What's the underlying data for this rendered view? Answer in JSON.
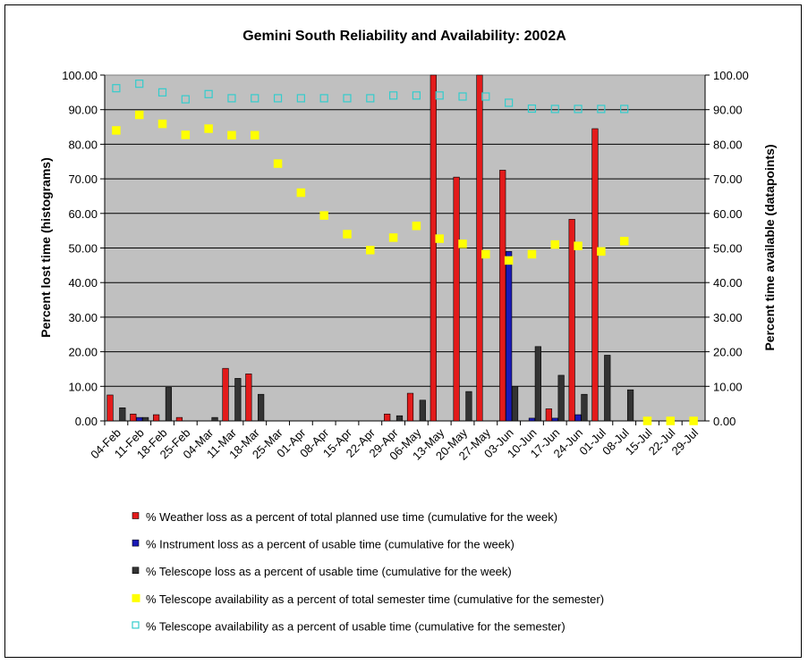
{
  "chart_data": {
    "type": "bar",
    "title": "Gemini South Reliability and Availability: 2002A",
    "ylabel_left": "Percent lost time (histograms)",
    "ylabel_right": "Percent time available (datapoints)",
    "ylim": [
      0,
      100
    ],
    "ytick_labels": [
      "0.00",
      "10.00",
      "20.00",
      "30.00",
      "40.00",
      "50.00",
      "60.00",
      "70.00",
      "80.00",
      "90.00",
      "100.00"
    ],
    "grid": true,
    "plot_background": "#c0c0c0",
    "categories": [
      "04-Feb",
      "11-Feb",
      "18-Feb",
      "25-Feb",
      "04-Mar",
      "11-Mar",
      "18-Mar",
      "25-Mar",
      "01-Apr",
      "08-Apr",
      "15-Apr",
      "22-Apr",
      "29-Apr",
      "06-May",
      "13-May",
      "20-May",
      "27-May",
      "03-Jun",
      "10-Jun",
      "17-Jun",
      "24-Jun",
      "01-Jul",
      "08-Jul",
      "15-Jul",
      "22-Jul",
      "29-Jul"
    ],
    "series": [
      {
        "name": "% Weather loss as a percent of total planned use time (cumulative for the week)",
        "kind": "bar",
        "color": "#e31b1b",
        "values": [
          7.5,
          2.0,
          1.8,
          1.0,
          0,
          15.2,
          13.6,
          0,
          0,
          0,
          0,
          0,
          2.0,
          8.0,
          100,
          70.5,
          100,
          72.5,
          0,
          3.5,
          58.3,
          84.5,
          0,
          0,
          0,
          0
        ]
      },
      {
        "name": "% Instrument loss as a percent of usable time (cumulative for the week)",
        "kind": "bar",
        "color": "#1a1ab8",
        "values": [
          0,
          1.0,
          0,
          0,
          0,
          0,
          0,
          0,
          0,
          0,
          0,
          0,
          0,
          0,
          0,
          0,
          0,
          49.0,
          0.8,
          0.8,
          1.8,
          0,
          0,
          0,
          0,
          0
        ]
      },
      {
        "name": "% Telescope loss as a percent of usable time (cumulative for the week)",
        "kind": "bar",
        "color": "#333333",
        "values": [
          3.8,
          1.0,
          9.7,
          0,
          1.0,
          12.3,
          7.7,
          0,
          0,
          0,
          0,
          0,
          1.5,
          6.0,
          0,
          8.5,
          0,
          10.0,
          21.5,
          13.2,
          7.7,
          19.0,
          9.0,
          0,
          0,
          0
        ]
      },
      {
        "name": "% Telescope availability as a percent of total semester time (cumulative for the semester)",
        "kind": "marker",
        "marker": "filled-square",
        "color": "#ffff00",
        "values": [
          84.0,
          88.5,
          85.9,
          82.7,
          84.5,
          82.6,
          82.6,
          74.4,
          66.0,
          59.4,
          54.0,
          49.4,
          53.0,
          56.4,
          52.7,
          51.2,
          48.2,
          46.4,
          48.2,
          51.0,
          50.6,
          49.0,
          52.0,
          0,
          0,
          0
        ]
      },
      {
        "name": "% Telescope availability as a percent of usable time (cumulative for the semester)",
        "kind": "marker",
        "marker": "hollow-square",
        "color": "#33cccc",
        "values": [
          96.2,
          97.5,
          95.0,
          93.0,
          94.5,
          93.3,
          93.3,
          93.3,
          93.3,
          93.3,
          93.3,
          93.3,
          94.1,
          94.1,
          94.1,
          93.8,
          93.8,
          92.0,
          90.3,
          90.2,
          90.2,
          90.2,
          90.2,
          null,
          null,
          null
        ]
      }
    ],
    "legend_position": "bottom"
  }
}
